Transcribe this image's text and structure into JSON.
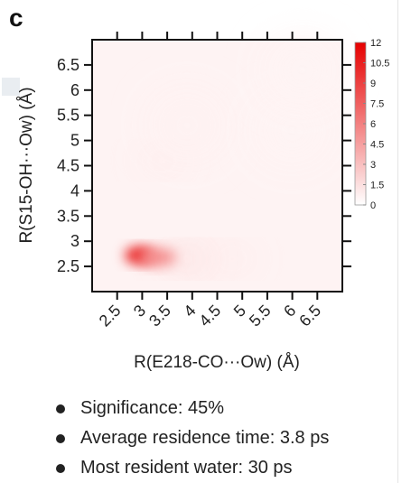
{
  "panel_label": "c",
  "chart_data": {
    "type": "heatmap",
    "xlabel": "R(E218-CO···Ow) (Å)",
    "ylabel": "R(S15-OH···Ow) (Å)",
    "x_ticks": [
      "2.5",
      "3",
      "3.5",
      "4",
      "4.5",
      "5",
      "5.5",
      "6",
      "6.5"
    ],
    "y_ticks": [
      "2.5",
      "3",
      "3.5",
      "4",
      "4.5",
      "5",
      "5.5",
      "6",
      "6.5"
    ],
    "xlim": [
      2.0,
      7.0
    ],
    "ylim": [
      2.0,
      7.0
    ],
    "colorbar_ticks": [
      "12",
      "10.5",
      "9",
      "7.5",
      "6",
      "4.5",
      "3",
      "1.5",
      "0"
    ],
    "colorbar_range": [
      0,
      12
    ],
    "colormap": [
      "#ffffff",
      "#e60000"
    ],
    "hotspots": [
      {
        "x": 2.95,
        "y": 2.72,
        "value": 12
      },
      {
        "x": 3.3,
        "y": 2.68,
        "value": 6
      },
      {
        "x": 3.9,
        "y": 2.65,
        "value": 2
      },
      {
        "x": 4.8,
        "y": 2.65,
        "value": 1
      },
      {
        "x": 3.4,
        "y": 4.6,
        "value": 1
      },
      {
        "x": 3.9,
        "y": 5.3,
        "value": 0.6
      },
      {
        "x": 6.0,
        "y": 5.2,
        "value": 0.5
      },
      {
        "x": 6.2,
        "y": 6.4,
        "value": 0.5
      }
    ]
  },
  "bullets": [
    "Significance: 45%",
    "Average residence time: 3.8 ps",
    "Most resident water: 30 ps"
  ],
  "colors": {
    "text": "#222222",
    "accent": "#e60000"
  }
}
